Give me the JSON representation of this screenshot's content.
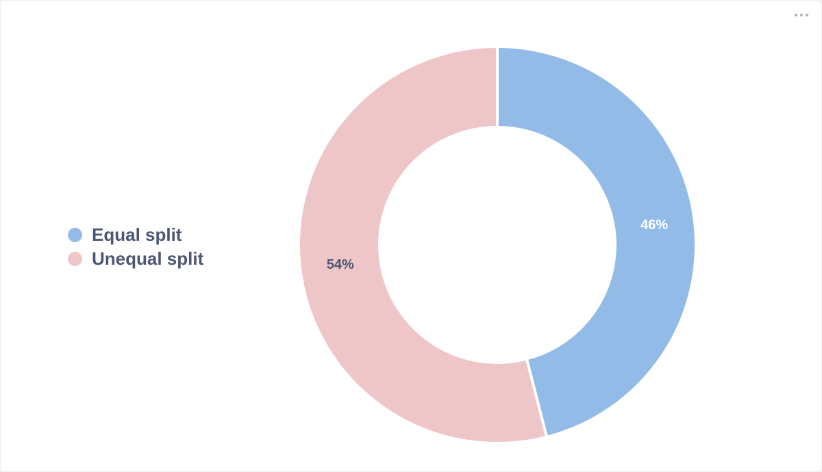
{
  "menu": {
    "icon": "more-horizontal-icon",
    "color": "#aeb5c0"
  },
  "chart_data": {
    "type": "pie",
    "variant": "donut",
    "title": "",
    "categories": [
      "Equal split",
      "Unequal split"
    ],
    "values": [
      46,
      54
    ],
    "labels": [
      "46%",
      "54%"
    ],
    "colors": [
      "#93bbe7",
      "#efc6c7"
    ],
    "label_colors": [
      "#ffffff",
      "#4c5773"
    ],
    "legend_position": "left",
    "start_angle_deg": 0,
    "direction": "clockwise"
  }
}
